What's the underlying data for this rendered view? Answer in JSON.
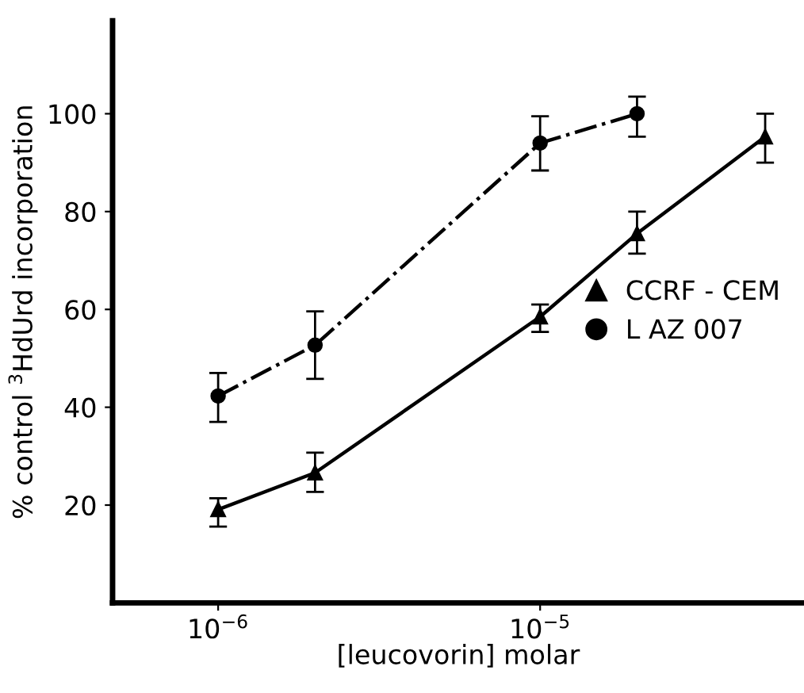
{
  "chart_data": {
    "type": "line",
    "xlabel": "[leucovorin] molar",
    "ylabel": "% control $^{3}$HdUrd incorporation",
    "log": "x",
    "xlim": [
      4.7e-07,
      6.6e-05
    ],
    "xticks": [
      {
        "value": 1e-06,
        "label": "10$^{−6}$"
      },
      {
        "value": 1e-05,
        "label": "10$^{−5}$"
      }
    ],
    "ylim": [
      0,
      119
    ],
    "yticks": [
      20,
      40,
      60,
      80,
      100
    ],
    "grid": false,
    "legend": "right",
    "series": [
      {
        "name": "CCRF - CEM",
        "color": "#000000",
        "marker": "triangle",
        "line_style": "solid",
        "x": [
          1e-06,
          2e-06,
          1e-05,
          2e-05,
          5e-05
        ],
        "values": [
          19.1,
          26.6,
          58.5,
          75.5,
          95.3
        ],
        "errors": [
          [
            15.6,
            21.4
          ],
          [
            22.7,
            30.7
          ],
          [
            55.4,
            61
          ],
          [
            71.4,
            80
          ],
          [
            90,
            100
          ]
        ]
      },
      {
        "name": "L AZ 007",
        "color": "#000000",
        "marker": "circle",
        "line_style": "dashdot",
        "x": [
          1e-06,
          2e-06,
          1e-05,
          2e-05
        ],
        "values": [
          42.3,
          52.7,
          94,
          100
        ],
        "errors": [
          [
            37,
            47
          ],
          [
            45.8,
            59.6
          ],
          [
            88.4,
            99.5
          ],
          [
            95.3,
            103.5
          ]
        ]
      }
    ]
  }
}
